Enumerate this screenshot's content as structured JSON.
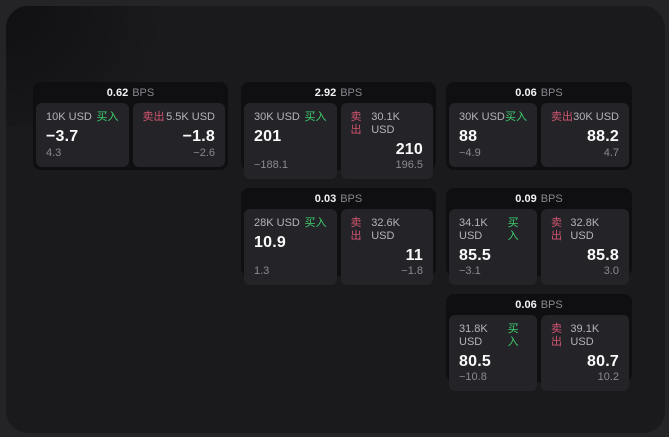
{
  "labels": {
    "buy": "买入",
    "sell": "卖出",
    "unit": "BPS"
  },
  "colors": {
    "buy": "#3ecf6e",
    "sell": "#d15570",
    "window_bg": "#1a1a1c",
    "card_bg": "#0f0f12",
    "panel_bg": "#242428"
  },
  "cards": [
    {
      "bps": "0.62",
      "buy": {
        "amount": "10K USD",
        "value": "−3.7",
        "delta": "4.3"
      },
      "sell": {
        "amount": "5.5K USD",
        "value": "−1.8",
        "delta": "−2.6"
      }
    },
    {
      "bps": "2.92",
      "buy": {
        "amount": "30K USD",
        "value": "201",
        "delta": "−188.1"
      },
      "sell": {
        "amount": "30.1K USD",
        "value": "210",
        "delta": "196.5"
      }
    },
    {
      "bps": "0.06",
      "buy": {
        "amount": "30K USD",
        "value": "88",
        "delta": "−4.9"
      },
      "sell": {
        "amount": "30K USD",
        "value": "88.2",
        "delta": "4.7"
      }
    },
    {
      "bps": "0.03",
      "buy": {
        "amount": "28K USD",
        "value": "10.9",
        "delta": "1.3"
      },
      "sell": {
        "amount": "32.6K USD",
        "value": "11",
        "delta": "−1.8"
      }
    },
    {
      "bps": "0.09",
      "buy": {
        "amount": "34.1K USD",
        "value": "85.5",
        "delta": "−3.1"
      },
      "sell": {
        "amount": "32.8K USD",
        "value": "85.8",
        "delta": "3.0"
      }
    },
    {
      "bps": "0.06",
      "buy": {
        "amount": "31.8K USD",
        "value": "80.5",
        "delta": "−10.8"
      },
      "sell": {
        "amount": "39.1K USD",
        "value": "80.7",
        "delta": "10.2"
      }
    }
  ]
}
